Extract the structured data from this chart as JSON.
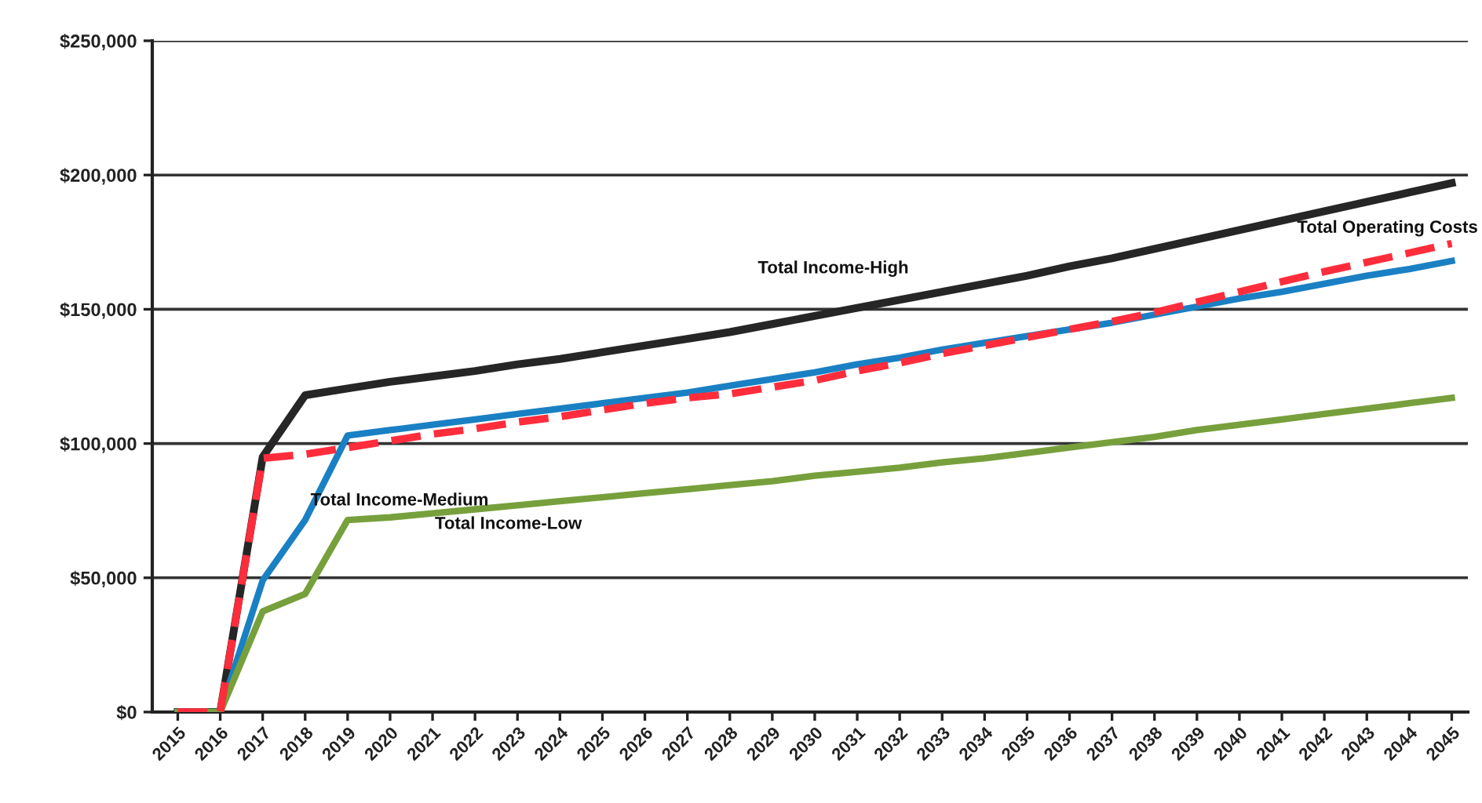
{
  "chart_data": {
    "type": "line",
    "categories": [
      "2015",
      "2016",
      "2017",
      "2018",
      "2019",
      "2020",
      "2021",
      "2022",
      "2023",
      "2024",
      "2025",
      "2026",
      "2027",
      "2028",
      "2029",
      "2030",
      "2031",
      "2032",
      "2033",
      "2034",
      "2035",
      "2036",
      "2037",
      "2038",
      "2039",
      "2040",
      "2041",
      "2042",
      "2043",
      "2044",
      "2045"
    ],
    "series": [
      {
        "name": "Total Income-High",
        "color": "#262626",
        "values": [
          0,
          0,
          95000,
          118000,
          120500,
          123000,
          125000,
          127000,
          129500,
          131500,
          134000,
          136500,
          139000,
          141500,
          144500,
          147500,
          150500,
          153500,
          156500,
          159500,
          162500,
          166000,
          169000,
          172500,
          176000,
          179500,
          183000,
          186500,
          190000,
          193500,
          197000
        ]
      },
      {
        "name": "Total Income-Medium",
        "color": "#1a80c4",
        "values": [
          0,
          0,
          49000,
          71500,
          103000,
          105000,
          107000,
          109000,
          111000,
          113000,
          115000,
          117000,
          119000,
          121500,
          124000,
          126500,
          129500,
          132000,
          135000,
          137500,
          140000,
          142500,
          145000,
          148000,
          151000,
          154000,
          156500,
          159500,
          162500,
          165000,
          168000
        ]
      },
      {
        "name": "Total Income-Low",
        "color": "#77a03c",
        "values": [
          0,
          0,
          37500,
          44000,
          71500,
          72500,
          74000,
          75500,
          77000,
          78500,
          80000,
          81500,
          83000,
          84500,
          86000,
          88000,
          89500,
          91000,
          93000,
          94500,
          96500,
          98500,
          100500,
          102500,
          105000,
          107000,
          109000,
          111000,
          113000,
          115000,
          117000
        ]
      },
      {
        "name": "Total Operating Costs",
        "color": "#ff2d3c",
        "line_style": "dashed",
        "values": [
          0,
          0,
          94500,
          96000,
          98500,
          101000,
          103500,
          105500,
          108000,
          110000,
          112500,
          115000,
          117000,
          118500,
          121000,
          123500,
          127000,
          130000,
          133500,
          136500,
          139500,
          142500,
          145500,
          148800,
          152700,
          156500,
          160300,
          164000,
          167500,
          171000,
          174500
        ]
      }
    ],
    "ylim": [
      0,
      250000
    ],
    "yticks": [
      {
        "value": 0,
        "label": "$0"
      },
      {
        "value": 50000,
        "label": "$50,000"
      },
      {
        "value": 100000,
        "label": "$100,000"
      },
      {
        "value": 150000,
        "label": "$150,000"
      },
      {
        "value": 200000,
        "label": "$200,000"
      },
      {
        "value": 250000,
        "label": "$250,000"
      }
    ],
    "grid": "y",
    "line_style": "solid"
  }
}
